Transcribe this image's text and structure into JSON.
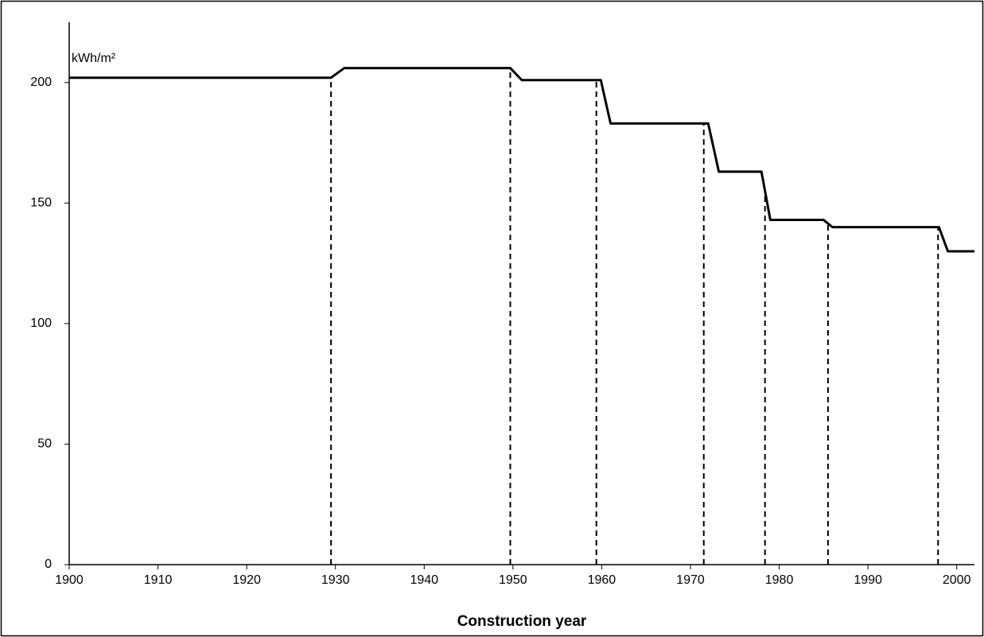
{
  "chart_data": {
    "type": "line",
    "y_label": "kWh/m²",
    "x_label": "Construction year",
    "x": [
      1900,
      1929.5,
      1931,
      1949.7,
      1951,
      1959.9,
      1961,
      1972,
      1973.2,
      1978,
      1979,
      1985,
      1986,
      1998,
      1999,
      2002
    ],
    "series": [
      {
        "color": "#000000",
        "values": [
          202,
          202,
          206,
          206,
          201,
          201,
          183,
          183,
          163,
          163,
          143,
          143,
          140,
          140,
          130,
          130
        ]
      }
    ],
    "markers": [
      1929.5,
      1949.7,
      1959.4,
      1971.5,
      1978.4,
      1985.5,
      1997.9
    ],
    "marker_color": "#000000",
    "xlim": [
      1900,
      2002
    ],
    "ylim": [
      0,
      225
    ],
    "xticks": [
      1900,
      1910,
      1920,
      1930,
      1940,
      1950,
      1960,
      1970,
      1980,
      1990,
      2000
    ],
    "yticks": [
      0,
      50,
      100,
      150,
      200
    ]
  }
}
